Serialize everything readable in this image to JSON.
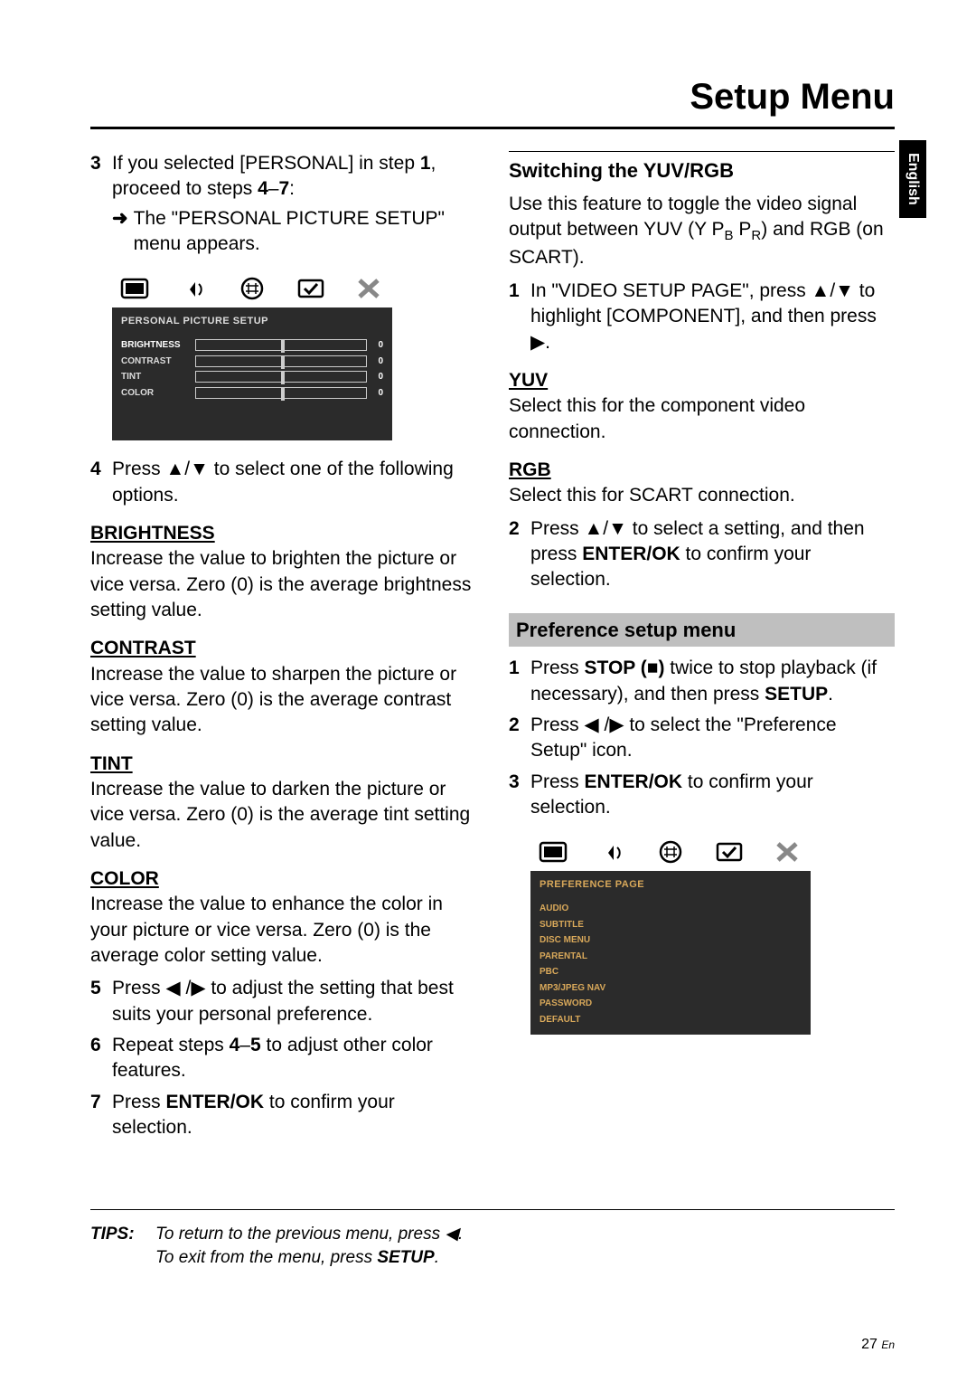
{
  "page_title": "Setup Menu",
  "lang_tab": "English",
  "left": {
    "step3_num": "3",
    "step3_text_a": "If you selected [PERSONAL] in step ",
    "step3_bold1": "1",
    "step3_text_b": ", proceed to steps ",
    "step3_bold2": "4",
    "step3_dash": "–",
    "step3_bold3": "7",
    "step3_colon": ":",
    "step3_sub": "The \"PERSONAL PICTURE SETUP\" menu appears.",
    "menu1": {
      "header": "PERSONAL PICTURE SETUP",
      "rows": [
        {
          "label": "BRIGHTNESS",
          "val": "0",
          "sel": true
        },
        {
          "label": "CONTRAST",
          "val": "0",
          "sel": false
        },
        {
          "label": "TINT",
          "val": "0",
          "sel": false
        },
        {
          "label": "COLOR",
          "val": "0",
          "sel": false
        }
      ]
    },
    "step4_num": "4",
    "step4_text": "Press ▲/▼ to select one of the following options.",
    "brightness_h": "BRIGHTNESS",
    "brightness_b": "Increase the value to brighten the picture or vice versa. Zero (0) is the average brightness setting value.",
    "contrast_h": "CONTRAST",
    "contrast_b": "Increase the value to sharpen the picture or vice versa. Zero (0) is the average contrast setting value.",
    "tint_h": "TINT",
    "tint_b": "Increase the value to darken the picture or vice versa. Zero (0) is the average tint setting value.",
    "color_h": "COLOR",
    "color_b": "Increase the value to enhance the color in your picture or vice versa. Zero (0) is the average color setting value.",
    "step5_num": "5",
    "step5_text": "Press ◀ /▶ to adjust the setting that best suits your personal preference.",
    "step6_num": "6",
    "step6_a": "Repeat steps ",
    "step6_b1": "4",
    "step6_dash": "–",
    "step6_b2": "5",
    "step6_b": " to adjust other color features.",
    "step7_num": "7",
    "step7_a": "Press ",
    "step7_b": "ENTER/OK",
    "step7_c": " to confirm your selection."
  },
  "right": {
    "yuv_header": "Switching the YUV/RGB",
    "yuv_intro_a": "Use this feature to toggle the video signal output between YUV (Y P",
    "yuv_intro_pb": "B",
    "yuv_intro_p2": " P",
    "yuv_intro_pr": "R",
    "yuv_intro_b": ") and RGB (on SCART).",
    "step1_num": "1",
    "step1_text": "In \"VIDEO SETUP PAGE\", press ▲/▼ to highlight [COMPONENT], and then press ▶.",
    "yuv_h": "YUV",
    "yuv_b": "Select this for the component video connection.",
    "rgb_h": "RGB",
    "rgb_b": "Select this for SCART connection.",
    "step2_num": "2",
    "step2_a": "Press ▲/▼ to select a setting, and then press ",
    "step2_b": "ENTER/OK",
    "step2_c": " to confirm your selection.",
    "pref_header": "Preference setup menu",
    "p_step1_num": "1",
    "p_step1_a": "Press ",
    "p_step1_b": "STOP (■)",
    "p_step1_c": " twice to stop playback (if necessary), and then press ",
    "p_step1_d": "SETUP",
    "p_step1_e": ".",
    "p_step2_num": "2",
    "p_step2_text": "Press ◀ /▶ to select the \"Preference Setup\" icon.",
    "p_step3_num": "3",
    "p_step3_a": "Press ",
    "p_step3_b": "ENTER/OK",
    "p_step3_c": " to confirm your selection.",
    "menu2": {
      "header": "PREFERENCE PAGE",
      "items": [
        "AUDIO",
        "SUBTITLE",
        "DISC MENU",
        "PARENTAL",
        "PBC",
        "MP3/JPEG NAV",
        "PASSWORD",
        "DEFAULT"
      ]
    }
  },
  "tips": {
    "label": "TIPS:",
    "line1": "To return to the previous menu, press ◀.",
    "line2_a": "To exit from the menu, press ",
    "line2_b": "SETUP",
    "line2_c": "."
  },
  "page_num": "27",
  "page_lang": "En"
}
